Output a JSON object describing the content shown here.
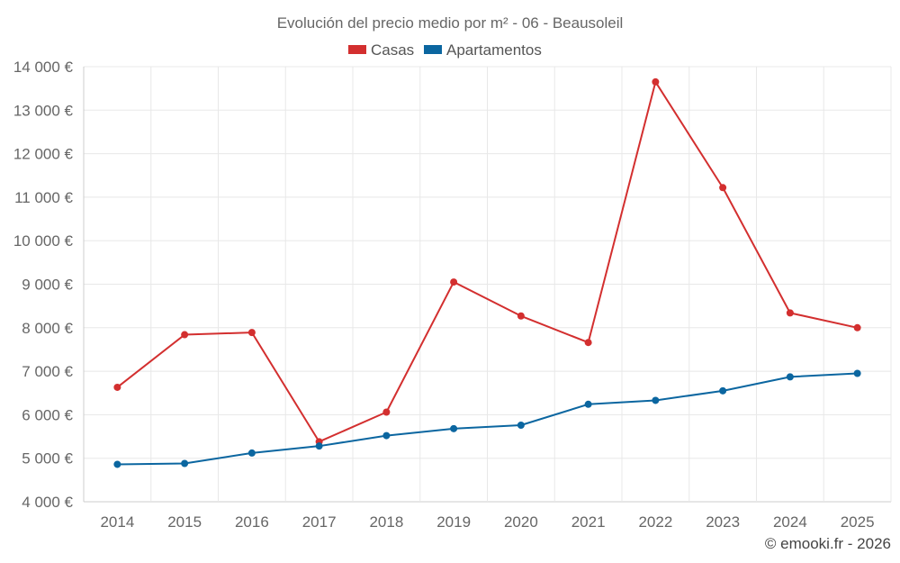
{
  "chart_data": {
    "type": "line",
    "title": "Evolución del precio medio por m² - 06 - Beausoleil",
    "categories": [
      "2014",
      "2015",
      "2016",
      "2017",
      "2018",
      "2019",
      "2020",
      "2021",
      "2022",
      "2023",
      "2024",
      "2025"
    ],
    "series": [
      {
        "name": "Casas",
        "color": "#d32f2f",
        "values": [
          6630,
          7840,
          7890,
          5380,
          6060,
          9050,
          8270,
          7660,
          13650,
          11220,
          8340,
          8000
        ]
      },
      {
        "name": "Apartamentos",
        "color": "#0b66a0",
        "values": [
          4860,
          4880,
          5120,
          5280,
          5520,
          5680,
          5760,
          6240,
          6330,
          6550,
          6870,
          6950
        ]
      }
    ],
    "ylim": [
      4000,
      14000
    ],
    "yticks": [
      "4 000 €",
      "5 000 €",
      "6 000 €",
      "7 000 €",
      "8 000 €",
      "9 000 €",
      "10 000 €",
      "11 000 €",
      "12 000 €",
      "13 000 €",
      "14 000 €"
    ],
    "ytick_values": [
      4000,
      5000,
      6000,
      7000,
      8000,
      9000,
      10000,
      11000,
      12000,
      13000,
      14000
    ],
    "legend_position": "top-center",
    "grid": true,
    "credit": "© emooki.fr - 2026"
  }
}
